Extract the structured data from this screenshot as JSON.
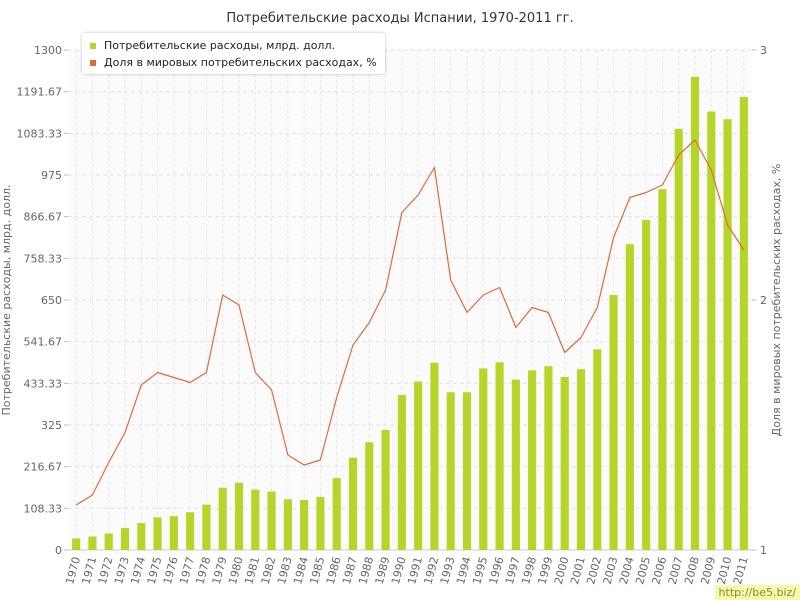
{
  "chart_data": {
    "type": "bar",
    "title": "Потребительские расходы Испании, 1970-2011 гг.",
    "xlabel": "",
    "ylabel": "Потребительские расходы, млрд. долл.",
    "y2label": "Доля в мировых потребительских расходах, %",
    "ylim": [
      0,
      1300
    ],
    "y2lim": [
      1,
      3
    ],
    "yticks": [
      "0",
      "108.33",
      "216.67",
      "325",
      "433.33",
      "541.67",
      "650",
      "758.33",
      "866.67",
      "975",
      "1083.33",
      "1191.67",
      "1300"
    ],
    "y2ticks": [
      "1",
      "2",
      "3"
    ],
    "grid": true,
    "legend_position": "top-left",
    "categories": [
      "1970",
      "1971",
      "1972",
      "1973",
      "1974",
      "1975",
      "1976",
      "1977",
      "1978",
      "1979",
      "1980",
      "1981",
      "1982",
      "1983",
      "1984",
      "1985",
      "1986",
      "1987",
      "1988",
      "1989",
      "1990",
      "1991",
      "1992",
      "1993",
      "1994",
      "1995",
      "1996",
      "1997",
      "1998",
      "1999",
      "2000",
      "2001",
      "2002",
      "2003",
      "2004",
      "2005",
      "2006",
      "2007",
      "2008",
      "2009",
      "2010",
      "2011"
    ],
    "series": [
      {
        "name": "Потребительские расходы, млрд. долл.",
        "type": "bar",
        "axis": "left",
        "color": "#b5d629",
        "values": [
          30,
          35,
          43,
          57,
          70,
          85,
          88,
          98,
          118,
          162,
          175,
          157,
          152,
          132,
          130,
          138,
          187,
          240,
          280,
          312,
          403,
          438,
          487,
          410,
          410,
          472,
          488,
          443,
          467,
          478,
          450,
          470,
          522,
          663,
          795,
          858,
          938,
          1095,
          1230,
          1140,
          1120,
          1178
        ]
      },
      {
        "name": "Доля в мировых потребительских расходах, %",
        "type": "line",
        "axis": "right",
        "color": "#e06a3c",
        "values": [
          1.18,
          1.22,
          1.35,
          1.47,
          1.66,
          1.71,
          1.69,
          1.67,
          1.71,
          2.02,
          1.98,
          1.71,
          1.64,
          1.38,
          1.34,
          1.36,
          1.61,
          1.82,
          1.91,
          2.04,
          2.35,
          2.42,
          2.53,
          2.08,
          1.95,
          2.02,
          2.05,
          1.89,
          1.97,
          1.95,
          1.79,
          1.85,
          1.97,
          2.25,
          2.41,
          2.43,
          2.46,
          2.58,
          2.64,
          2.52,
          2.3,
          2.2
        ]
      }
    ]
  },
  "watermark": "http://be5.biz/"
}
